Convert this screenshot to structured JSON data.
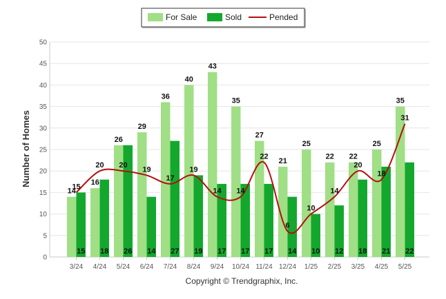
{
  "chart_data": {
    "type": "bar",
    "categories": [
      "3/24",
      "4/24",
      "5/24",
      "6/24",
      "7/24",
      "8/24",
      "9/24",
      "10/24",
      "11/24",
      "12/24",
      "1/25",
      "2/25",
      "3/25",
      "4/25",
      "5/25"
    ],
    "series": [
      {
        "name": "For Sale",
        "type": "bar",
        "color": "#a0df85",
        "values": [
          14,
          16,
          26,
          29,
          36,
          40,
          43,
          35,
          27,
          21,
          25,
          22,
          22,
          25,
          35
        ]
      },
      {
        "name": "Sold",
        "type": "bar",
        "color": "#13a82d",
        "values": [
          15,
          18,
          26,
          14,
          27,
          19,
          17,
          17,
          17,
          14,
          10,
          12,
          18,
          21,
          22
        ]
      },
      {
        "name": "Pended",
        "type": "line",
        "color": "#b30f0f",
        "values": [
          15,
          20,
          20,
          19,
          17,
          19,
          14,
          14,
          22,
          6,
          10,
          14,
          20,
          18,
          31
        ]
      }
    ],
    "ylabel": "Number of Homes",
    "xlabel": "",
    "ylim": [
      0,
      50
    ],
    "yticks": [
      0,
      5,
      10,
      15,
      20,
      25,
      30,
      35,
      40,
      45,
      50
    ],
    "grid": true,
    "legend_position": "top-center",
    "credit": "Copyright © Trendgraphix, Inc."
  }
}
